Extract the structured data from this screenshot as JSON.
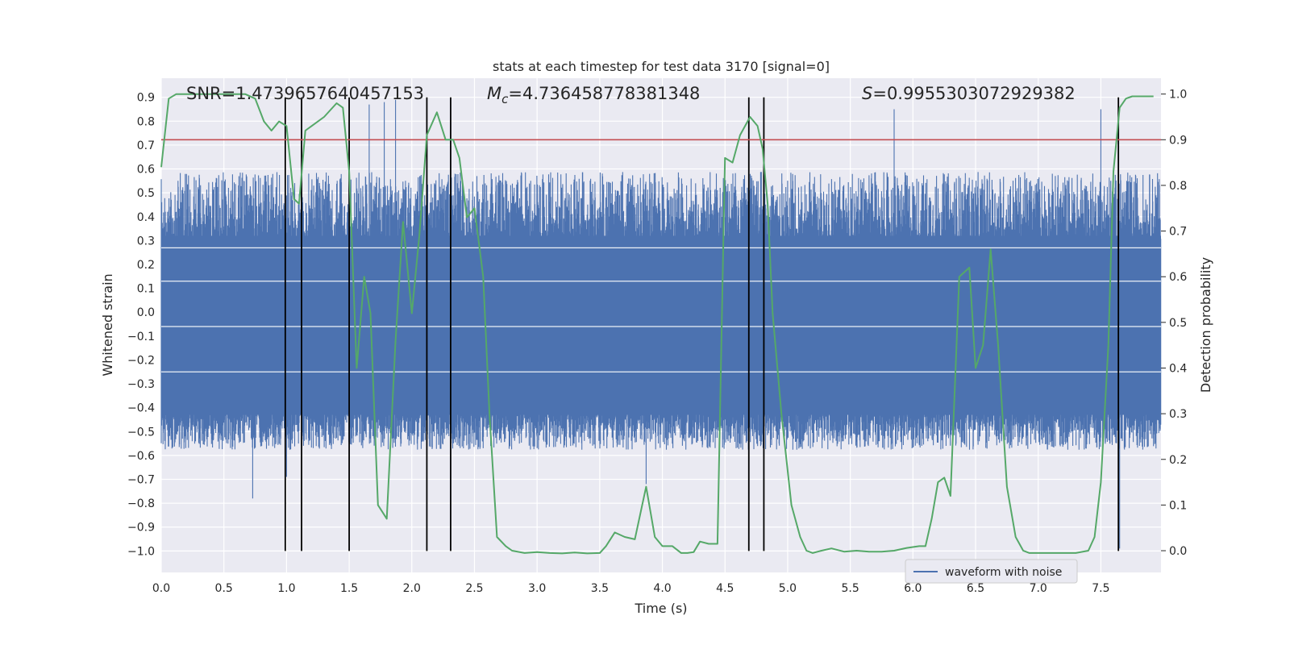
{
  "chart_data": {
    "type": "line",
    "title": "stats at each timestep for test data 3170 [signal=0]",
    "xlabel": "Time (s)",
    "ylabel": "Whitened strain",
    "ylabel_right": "Detection probability",
    "xlim": [
      0.0,
      7.98
    ],
    "ylim": [
      -1.09,
      0.98
    ],
    "ylim_right": [
      -0.0476,
      1.0347
    ],
    "x_ticks": [
      0.0,
      0.5,
      1.0,
      1.5,
      2.0,
      2.5,
      3.0,
      3.5,
      4.0,
      4.5,
      5.0,
      5.5,
      6.0,
      6.5,
      7.0,
      7.5
    ],
    "x_tick_labels": [
      "0.0",
      "0.5",
      "1.0",
      "1.5",
      "2.0",
      "2.5",
      "3.0",
      "3.5",
      "4.0",
      "4.5",
      "5.0",
      "5.5",
      "6.0",
      "6.5",
      "7.0",
      "7.5"
    ],
    "y_ticks": [
      0.9,
      0.8,
      0.7,
      0.6,
      0.5,
      0.4,
      0.3,
      0.2,
      0.1,
      0.0,
      -0.1,
      -0.2,
      -0.3,
      -0.4,
      -0.5,
      -0.6,
      -0.7,
      -0.8,
      -0.9,
      -1.0
    ],
    "y_tick_labels": [
      "0.9",
      "0.8",
      "0.7",
      "0.6",
      "0.5",
      "0.4",
      "0.3",
      "0.2",
      "0.1",
      "0.0",
      "−0.1",
      "−0.2",
      "−0.3",
      "−0.4",
      "−0.5",
      "−0.6",
      "−0.7",
      "−0.8",
      "−0.9",
      "−1.0"
    ],
    "y_right_ticks": [
      1.0,
      0.9,
      0.8,
      0.7,
      0.6,
      0.5,
      0.4,
      0.3,
      0.2,
      0.1,
      0.0
    ],
    "y_right_tick_labels": [
      "1.0",
      "0.9",
      "0.8",
      "0.7",
      "0.6",
      "0.5",
      "0.4",
      "0.3",
      "0.2",
      "0.1",
      "0.0"
    ],
    "annotations": {
      "snr": "SNR=1.4739657640457153",
      "mc_symbol": "M",
      "mc_sub": "c",
      "mc_value": "=4.736458778381348",
      "s_symbol": "S",
      "s_value": "=0.9955303072929382"
    },
    "legend": {
      "label": "waveform with noise",
      "placement": "lower-right"
    },
    "threshold": {
      "value": 0.9,
      "axis": "right",
      "color": "#c44e52"
    },
    "waveform": {
      "name": "waveform with noise",
      "color": "#4c72b0",
      "core_band": [
        -0.43,
        0.32
      ],
      "typical_range": [
        -0.55,
        0.55
      ],
      "extreme_range": [
        -0.99,
        0.89
      ],
      "notable_peaks": [
        {
          "t": 1.78,
          "y": 0.88
        },
        {
          "t": 1.87,
          "y": 0.89
        },
        {
          "t": 1.66,
          "y": 0.87
        },
        {
          "t": 5.85,
          "y": 0.85
        },
        {
          "t": 7.5,
          "y": 0.85
        },
        {
          "t": 0.73,
          "y": -0.78
        },
        {
          "t": 7.65,
          "y": -0.99
        },
        {
          "t": 1.0,
          "y": -0.69
        },
        {
          "t": 3.87,
          "y": -0.72
        }
      ]
    },
    "detection_probability": {
      "color": "#55a868",
      "x": [
        0.0,
        0.06,
        0.12,
        0.2,
        0.3,
        0.4,
        0.5,
        0.6,
        0.67,
        0.75,
        0.82,
        0.88,
        0.94,
        1.0,
        1.06,
        1.1,
        1.15,
        1.2,
        1.3,
        1.4,
        1.45,
        1.5,
        1.56,
        1.62,
        1.67,
        1.73,
        1.8,
        1.87,
        1.93,
        2.0,
        2.06,
        2.12,
        2.2,
        2.27,
        2.33,
        2.38,
        2.44,
        2.5,
        2.57,
        2.62,
        2.68,
        2.75,
        2.8,
        2.9,
        3.0,
        3.1,
        3.2,
        3.3,
        3.4,
        3.5,
        3.55,
        3.62,
        3.7,
        3.78,
        3.87,
        3.94,
        4.0,
        4.08,
        4.15,
        4.2,
        4.25,
        4.3,
        4.37,
        4.44,
        4.5,
        4.56,
        4.62,
        4.7,
        4.76,
        4.8,
        4.84,
        4.88,
        4.95,
        5.03,
        5.1,
        5.15,
        5.2,
        5.27,
        5.35,
        5.45,
        5.55,
        5.65,
        5.75,
        5.85,
        5.95,
        6.05,
        6.1,
        6.15,
        6.2,
        6.25,
        6.3,
        6.37,
        6.45,
        6.5,
        6.56,
        6.62,
        6.68,
        6.75,
        6.82,
        6.88,
        6.93,
        7.0,
        7.1,
        7.2,
        7.3,
        7.4,
        7.45,
        7.5,
        7.56,
        7.6,
        7.65,
        7.7,
        7.75,
        7.8,
        7.86,
        7.92
      ],
      "y": [
        0.84,
        0.99,
        1.0,
        1.0,
        1.0,
        1.0,
        1.0,
        1.0,
        1.0,
        0.99,
        0.94,
        0.92,
        0.94,
        0.93,
        0.77,
        0.76,
        0.92,
        0.93,
        0.95,
        0.98,
        0.97,
        0.83,
        0.4,
        0.6,
        0.52,
        0.1,
        0.07,
        0.46,
        0.72,
        0.52,
        0.69,
        0.91,
        0.96,
        0.9,
        0.9,
        0.86,
        0.73,
        0.75,
        0.6,
        0.3,
        0.03,
        0.01,
        0.0,
        -0.005,
        -0.003,
        -0.005,
        -0.006,
        -0.004,
        -0.006,
        -0.005,
        0.01,
        0.04,
        0.03,
        0.025,
        0.14,
        0.03,
        0.01,
        0.01,
        -0.005,
        -0.005,
        -0.003,
        0.02,
        0.015,
        0.015,
        0.86,
        0.85,
        0.91,
        0.95,
        0.93,
        0.88,
        0.76,
        0.52,
        0.3,
        0.1,
        0.03,
        0.0,
        -0.005,
        0.0,
        0.005,
        -0.002,
        0.0,
        -0.002,
        -0.002,
        0.0,
        0.006,
        0.01,
        0.01,
        0.07,
        0.15,
        0.16,
        0.12,
        0.6,
        0.62,
        0.4,
        0.45,
        0.66,
        0.45,
        0.14,
        0.03,
        0.0,
        -0.005,
        -0.005,
        -0.005,
        -0.005,
        -0.005,
        0.0,
        0.03,
        0.15,
        0.45,
        0.83,
        0.97,
        0.99,
        0.995,
        0.995,
        0.995,
        0.995
      ]
    },
    "vlines": {
      "color": "#000000",
      "x": [
        0.99,
        1.12,
        1.5,
        2.12,
        2.31,
        4.69,
        4.81,
        7.64
      ],
      "y_range": [
        -1.0,
        0.9
      ]
    }
  }
}
